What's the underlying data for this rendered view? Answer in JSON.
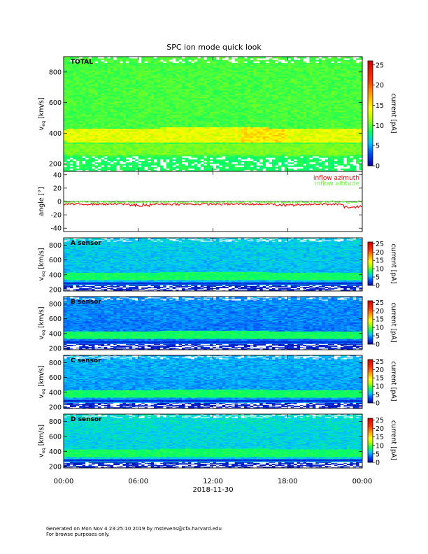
{
  "title": "SPC ion mode quick look",
  "footer": {
    "line1": "Generated on Mon Nov  4 23:25:10 2019 by mstevens@cfa.harvard.edu",
    "line2": "For browse purposes only."
  },
  "chart_data": [
    {
      "type": "heatmap",
      "panel_label": "TOTAL",
      "ylabel_main": "v",
      "ylabel_sub": "eq",
      "ylabel_unit": " [km/s]",
      "ylim": [
        150,
        900
      ],
      "yticks": [
        200,
        400,
        600,
        800
      ],
      "colorbar": {
        "label": "current [pA]",
        "range": [
          0,
          26
        ],
        "ticks": [
          0,
          5,
          10,
          15,
          20,
          25
        ]
      },
      "description_band_kms": [
        350,
        420
      ],
      "background_level_pA": 6,
      "band_level_pA": 11
    },
    {
      "type": "line",
      "ylabel": "angle [°]",
      "ylim": [
        -45,
        45
      ],
      "yticks": [
        -40,
        -20,
        0,
        20,
        40
      ],
      "zero_line": true,
      "series": [
        {
          "name": "inflow azimuth",
          "color": "#ff0000",
          "typical_deg": -4,
          "min_deg": -10
        },
        {
          "name": "inflow altitude",
          "color": "#66ff33",
          "typical_deg": -1,
          "min_deg": -5
        }
      ]
    },
    {
      "type": "heatmap",
      "panel_label": "A sensor",
      "ylabel_main": "v",
      "ylabel_sub": "eq",
      "ylabel_unit": " [km/s]",
      "ylim": [
        180,
        900
      ],
      "yticks": [
        200,
        400,
        600,
        800
      ],
      "colorbar": {
        "label": "current [pA]",
        "range": [
          0,
          26
        ],
        "ticks": [
          0,
          5,
          10,
          15,
          20,
          25
        ]
      },
      "band_kms": [
        340,
        420
      ]
    },
    {
      "type": "heatmap",
      "panel_label": "B sensor",
      "ylabel_main": "v",
      "ylabel_sub": "eq",
      "ylabel_unit": " [km/s]",
      "ylim": [
        180,
        900
      ],
      "yticks": [
        200,
        400,
        600,
        800
      ],
      "colorbar": {
        "label": "current [pA]",
        "range": [
          0,
          26
        ],
        "ticks": [
          0,
          5,
          10,
          15,
          20,
          25
        ]
      },
      "band_kms": [
        340,
        420
      ]
    },
    {
      "type": "heatmap",
      "panel_label": "C sensor",
      "ylabel_main": "v",
      "ylabel_sub": "eq",
      "ylabel_unit": " [km/s]",
      "ylim": [
        180,
        900
      ],
      "yticks": [
        200,
        400,
        600,
        800
      ],
      "colorbar": {
        "label": "current [pA]",
        "range": [
          0,
          26
        ],
        "ticks": [
          0,
          5,
          10,
          15,
          20,
          25
        ]
      },
      "band_kms": [
        340,
        420
      ]
    },
    {
      "type": "heatmap",
      "panel_label": "D sensor",
      "ylabel_main": "v",
      "ylabel_sub": "eq",
      "ylabel_unit": " [km/s]",
      "ylim": [
        180,
        900
      ],
      "yticks": [
        200,
        400,
        600,
        800
      ],
      "colorbar": {
        "label": "current [pA]",
        "range": [
          0,
          26
        ],
        "ticks": [
          0,
          5,
          10,
          15,
          20,
          25
        ]
      },
      "band_kms": [
        340,
        420
      ]
    }
  ],
  "x_axis": {
    "ticks": [
      "00:00",
      "06:00",
      "12:00",
      "18:00",
      "00:00"
    ],
    "date_label": "2018-11-30",
    "range_hours": [
      0,
      24
    ]
  }
}
